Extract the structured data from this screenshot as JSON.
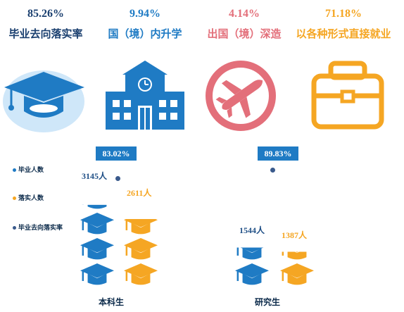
{
  "kpis": [
    {
      "value": "85.26%",
      "label": "毕业去向落实率",
      "color": "#1a3f6f",
      "icon": "graduation-cap-icon"
    },
    {
      "value": "9.94%",
      "label": "国（境）内升学",
      "color": "#1f7bc4",
      "icon": "school-building-icon"
    },
    {
      "value": "4.14%",
      "label": "出国（境）深造",
      "color": "#e36f7a",
      "icon": "airplane-icon"
    },
    {
      "value": "71.18%",
      "label": "以各种形式直接就业",
      "color": "#f5a623",
      "icon": "briefcase-icon"
    }
  ],
  "legend": [
    {
      "label": "毕业人数",
      "color": "#1f7bc4"
    },
    {
      "label": "落实人数",
      "color": "#f5a623"
    },
    {
      "label": "毕业去向落实率",
      "color": "#3a5a8c"
    }
  ],
  "chart_data": {
    "type": "bar",
    "categories": [
      "本科生",
      "研究生"
    ],
    "series": [
      {
        "name": "毕业人数",
        "values": [
          3145,
          1544
        ],
        "labels": [
          "3145人",
          "1544人"
        ],
        "color": "#1f7bc4"
      },
      {
        "name": "落实人数",
        "values": [
          2611,
          1387
        ],
        "labels": [
          "2611人",
          "1387人"
        ],
        "color": "#f5a623"
      },
      {
        "name": "毕业去向落实率",
        "values": [
          83.02,
          89.83
        ],
        "labels": [
          "83.02%",
          "89.83%"
        ],
        "color": "#3a5a8c"
      }
    ]
  }
}
